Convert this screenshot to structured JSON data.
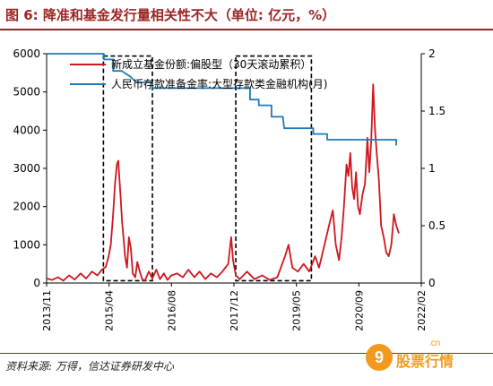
{
  "header": {
    "title": "图 6: 降准和基金发行量相关性不大（单位: 亿元，%）"
  },
  "footer": {
    "source": "资料来源: 万得，信达证券研发中心"
  },
  "watermark": {
    "badge": "9",
    "text": "股票行情",
    "sub": ".cn"
  },
  "chart_data": {
    "type": "line",
    "x_tick_labels": [
      "2013/11",
      "2015/04",
      "2016/08",
      "2017/12",
      "2019/05",
      "2020/09",
      "2022/02"
    ],
    "ylim": [
      0,
      6000
    ],
    "y_ticks": [
      "0",
      "1000",
      "2000",
      "3000",
      "4000",
      "5000",
      "6000"
    ],
    "y2lim": [
      0,
      2
    ],
    "y2_ticks": [
      "0",
      "0.5",
      "1",
      "1.5",
      "2"
    ],
    "legend_position": "top-right",
    "colors": {
      "fund": "#d0161e",
      "rrr": "#1f7ab8",
      "box": "#000000"
    },
    "series": [
      {
        "name": "新成立基金份额:偏股型（30天滚动累积）",
        "axis": "left",
        "points": [
          [
            "2013-11-01",
            120
          ],
          [
            "2013-12-15",
            80
          ],
          [
            "2014-02-01",
            150
          ],
          [
            "2014-03-15",
            60
          ],
          [
            "2014-05-01",
            200
          ],
          [
            "2014-06-15",
            90
          ],
          [
            "2014-08-01",
            250
          ],
          [
            "2014-09-15",
            120
          ],
          [
            "2014-11-01",
            300
          ],
          [
            "2014-12-15",
            200
          ],
          [
            "2015-01-20",
            350
          ],
          [
            "2015-02-20",
            420
          ],
          [
            "2015-03-15",
            700
          ],
          [
            "2015-04-01",
            1000
          ],
          [
            "2015-04-20",
            1800
          ],
          [
            "2015-05-05",
            2600
          ],
          [
            "2015-05-20",
            3100
          ],
          [
            "2015-06-01",
            3200
          ],
          [
            "2015-06-10",
            2700
          ],
          [
            "2015-06-20",
            2200
          ],
          [
            "2015-07-01",
            1600
          ],
          [
            "2015-07-15",
            1100
          ],
          [
            "2015-07-25",
            700
          ],
          [
            "2015-08-10",
            400
          ],
          [
            "2015-08-25",
            1200
          ],
          [
            "2015-09-10",
            900
          ],
          [
            "2015-09-25",
            250
          ],
          [
            "2015-10-15",
            150
          ],
          [
            "2015-11-01",
            550
          ],
          [
            "2015-11-20",
            300
          ],
          [
            "2015-12-10",
            100
          ],
          [
            "2016-01-01",
            60
          ],
          [
            "2016-02-01",
            300
          ],
          [
            "2016-03-01",
            120
          ],
          [
            "2016-04-01",
            350
          ],
          [
            "2016-05-01",
            100
          ],
          [
            "2016-06-01",
            250
          ],
          [
            "2016-07-01",
            80
          ],
          [
            "2016-08-01",
            200
          ],
          [
            "2016-09-15",
            250
          ],
          [
            "2016-11-01",
            150
          ],
          [
            "2016-12-15",
            350
          ],
          [
            "2017-02-01",
            150
          ],
          [
            "2017-03-15",
            300
          ],
          [
            "2017-05-01",
            100
          ],
          [
            "2017-06-15",
            250
          ],
          [
            "2017-08-01",
            150
          ],
          [
            "2017-09-15",
            300
          ],
          [
            "2017-11-01",
            500
          ],
          [
            "2017-11-25",
            1200
          ],
          [
            "2017-12-10",
            600
          ],
          [
            "2018-01-01",
            200
          ],
          [
            "2018-02-01",
            100
          ],
          [
            "2018-04-01",
            300
          ],
          [
            "2018-06-01",
            100
          ],
          [
            "2018-08-01",
            200
          ],
          [
            "2018-10-01",
            80
          ],
          [
            "2018-12-01",
            150
          ],
          [
            "2019-02-01",
            700
          ],
          [
            "2019-03-01",
            1000
          ],
          [
            "2019-04-01",
            400
          ],
          [
            "2019-05-15",
            300
          ],
          [
            "2019-07-01",
            500
          ],
          [
            "2019-08-15",
            300
          ],
          [
            "2019-10-01",
            700
          ],
          [
            "2019-11-01",
            400
          ],
          [
            "2019-12-15",
            1000
          ],
          [
            "2020-01-20",
            1500
          ],
          [
            "2020-02-20",
            1900
          ],
          [
            "2020-03-15",
            1000
          ],
          [
            "2020-04-10",
            600
          ],
          [
            "2020-05-01",
            1200
          ],
          [
            "2020-05-20",
            2000
          ],
          [
            "2020-06-10",
            3100
          ],
          [
            "2020-06-25",
            2800
          ],
          [
            "2020-07-10",
            3400
          ],
          [
            "2020-07-25",
            2500
          ],
          [
            "2020-08-10",
            2200
          ],
          [
            "2020-08-25",
            2900
          ],
          [
            "2020-09-10",
            2000
          ],
          [
            "2020-09-25",
            1800
          ],
          [
            "2020-10-15",
            2300
          ],
          [
            "2020-11-05",
            2600
          ],
          [
            "2020-11-25",
            3800
          ],
          [
            "2020-12-10",
            2900
          ],
          [
            "2020-12-25",
            3700
          ],
          [
            "2021-01-10",
            5200
          ],
          [
            "2021-01-25",
            4000
          ],
          [
            "2021-02-10",
            3300
          ],
          [
            "2021-02-25",
            2700
          ],
          [
            "2021-03-15",
            1500
          ],
          [
            "2021-04-05",
            1200
          ],
          [
            "2021-04-25",
            800
          ],
          [
            "2021-05-15",
            700
          ],
          [
            "2021-06-05",
            1000
          ],
          [
            "2021-06-25",
            1800
          ],
          [
            "2021-07-15",
            1500
          ],
          [
            "2021-08-05",
            1300
          ]
        ]
      },
      {
        "name": "人民币存款准备金率:大型存款类金融机构(月)",
        "axis": "right",
        "points": [
          [
            "2013-11-01",
            2.0
          ],
          [
            "2015-02-05",
            2.0
          ],
          [
            "2015-02-05",
            1.95
          ],
          [
            "2015-04-20",
            1.95
          ],
          [
            "2015-04-20",
            1.85
          ],
          [
            "2015-06-28",
            1.85
          ],
          [
            "2015-09-06",
            1.8
          ],
          [
            "2015-10-24",
            1.75
          ],
          [
            "2016-03-01",
            1.75
          ],
          [
            "2016-03-01",
            1.7
          ],
          [
            "2018-04-25",
            1.7
          ],
          [
            "2018-04-25",
            1.6
          ],
          [
            "2018-07-05",
            1.6
          ],
          [
            "2018-07-05",
            1.55
          ],
          [
            "2018-10-15",
            1.55
          ],
          [
            "2018-10-15",
            1.45
          ],
          [
            "2019-01-15",
            1.45
          ],
          [
            "2019-01-25",
            1.35
          ],
          [
            "2019-09-16",
            1.35
          ],
          [
            "2019-09-16",
            1.3
          ],
          [
            "2020-01-06",
            1.3
          ],
          [
            "2020-01-06",
            1.25
          ],
          [
            "2021-07-15",
            1.25
          ],
          [
            "2021-07-15",
            1.2
          ]
        ]
      }
    ],
    "highlight_boxes": [
      {
        "from": "2015-02-01",
        "to": "2016-03-01"
      },
      {
        "from": "2018-01-01",
        "to": "2019-09-01"
      }
    ]
  }
}
